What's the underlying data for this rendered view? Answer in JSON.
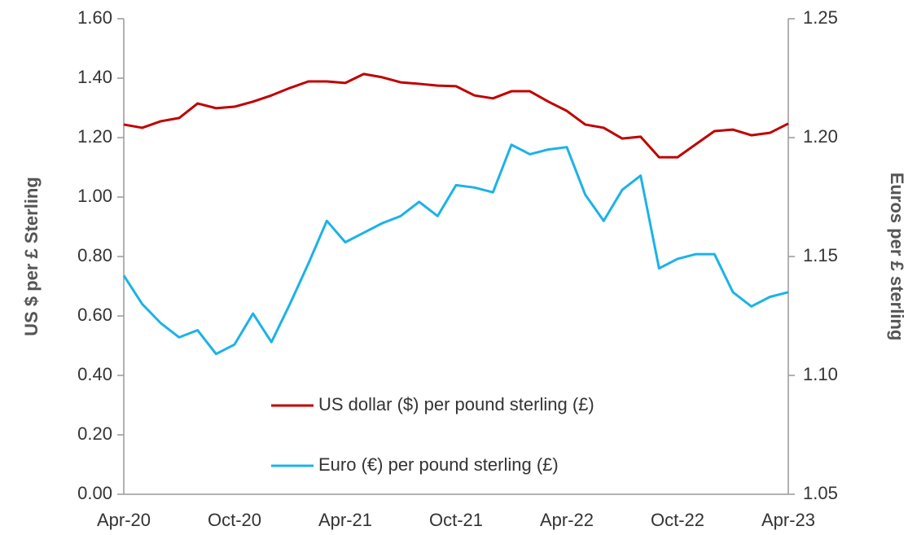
{
  "chart_data": {
    "type": "line",
    "categories": [
      "Apr-20",
      null,
      null,
      null,
      null,
      null,
      "Oct-20",
      null,
      null,
      null,
      null,
      null,
      "Apr-21",
      null,
      null,
      null,
      null,
      null,
      "Oct-21",
      null,
      null,
      null,
      null,
      null,
      "Apr-22",
      null,
      null,
      null,
      null,
      null,
      "Oct-22",
      null,
      null,
      null,
      null,
      null,
      "Apr-23"
    ],
    "ylabel": "US $ per £ Sterling",
    "y2label": "Euros per £ sterling",
    "ylim": [
      0,
      1.6
    ],
    "yticks": [
      {
        "value": 0,
        "label": "0.00"
      },
      {
        "value": 0.2,
        "label": "0.20"
      },
      {
        "value": 0.4,
        "label": "0.40"
      },
      {
        "value": 0.6,
        "label": "0.60"
      },
      {
        "value": 0.8,
        "label": "0.80"
      },
      {
        "value": 1.0,
        "label": "1.00"
      },
      {
        "value": 1.2,
        "label": "1.20"
      },
      {
        "value": 1.4,
        "label": "1.40"
      },
      {
        "value": 1.6,
        "label": "1.60"
      }
    ],
    "y2lim": [
      1.05,
      1.25
    ],
    "y2ticks": [
      1.05,
      {
        "value": 1.1,
        "label": "1.10"
      },
      1.15,
      {
        "value": 1.2,
        "label": "1.20"
      },
      1.25
    ],
    "series": [
      {
        "name": "US dollar ($) per pound sterling (£)",
        "color": "#c00000",
        "values": [
          1.244,
          1.233,
          1.255,
          1.266,
          1.315,
          1.299,
          1.304,
          1.321,
          1.342,
          1.367,
          1.389,
          1.389,
          1.384,
          1.414,
          1.403,
          1.386,
          1.381,
          1.375,
          1.373,
          1.342,
          1.332,
          1.356,
          1.356,
          1.321,
          1.29,
          1.244,
          1.233,
          1.197,
          1.203,
          1.134,
          1.134,
          1.178,
          1.222,
          1.227,
          1.208,
          1.216,
          1.247
        ]
      },
      {
        "name": "Euro (€) per pound sterling (£)",
        "color": "#1cb2e8",
        "axis": "y2",
        "values": [
          1.142,
          1.13,
          1.122,
          1.116,
          1.119,
          1.109,
          1.113,
          1.126,
          1.114,
          1.13,
          1.147,
          1.165,
          1.156,
          1.16,
          1.164,
          1.167,
          1.173,
          1.167,
          1.18,
          1.179,
          1.177,
          1.197,
          1.193,
          1.195,
          1.196,
          1.176,
          1.165,
          1.178,
          1.184,
          1.145,
          1.149,
          1.151,
          1.151,
          1.135,
          1.129,
          1.133,
          1.135
        ]
      }
    ]
  }
}
